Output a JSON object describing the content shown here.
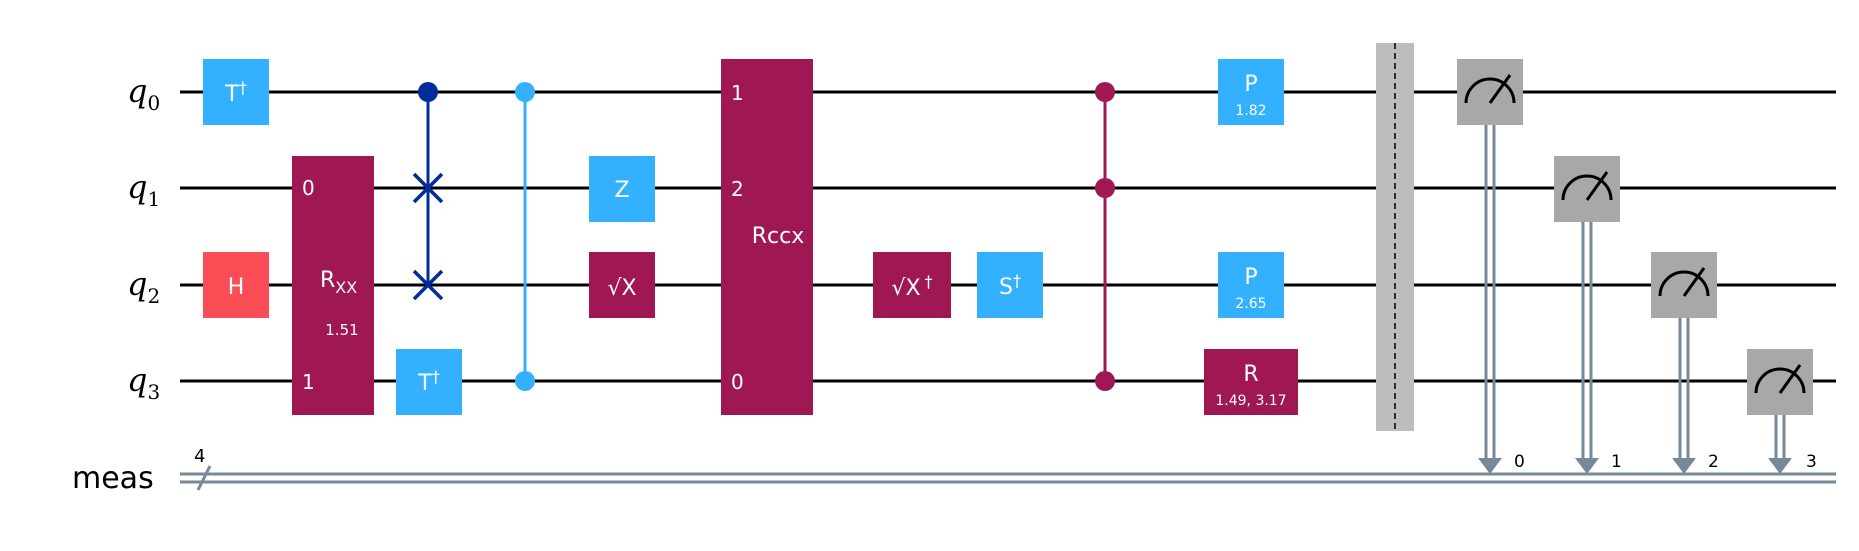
{
  "colors": {
    "wire": "#000000",
    "classical_wire": "#778899",
    "pauli_gate": "#33b1ff",
    "hadamard_gate": "#fa4d56",
    "multi_gate": "#9f1853",
    "swap": "#002d9c",
    "measure_gate": "#a8a8a8",
    "barrier": "#bdbdbd"
  },
  "qubits": [
    {
      "letter": "q",
      "index": "0"
    },
    {
      "letter": "q",
      "index": "1"
    },
    {
      "letter": "q",
      "index": "2"
    },
    {
      "letter": "q",
      "index": "3"
    }
  ],
  "classical_register": {
    "label": "meas",
    "size": "4"
  },
  "gates": {
    "tdg_q0": "T",
    "h_q2": "H",
    "rxx": {
      "name": "R",
      "sub": "XX",
      "param": "1.51",
      "port_top": "0",
      "port_bottom": "1"
    },
    "tdg_q3": "T",
    "z_q1": "Z",
    "sx_q2": "X",
    "rccx": {
      "name": "Rccx",
      "port_q0": "1",
      "port_q1": "2",
      "port_q3": "0"
    },
    "sxdg_q2": "X",
    "sdg_q2": "S",
    "p_q0": {
      "name": "P",
      "param": "1.82"
    },
    "p_q2": {
      "name": "P",
      "param": "2.65"
    },
    "r_q3": {
      "name": "R",
      "param": "1.49, 3.17"
    }
  },
  "dagger": "†",
  "sqrt": "√",
  "measurements": [
    "0",
    "1",
    "2",
    "3"
  ]
}
